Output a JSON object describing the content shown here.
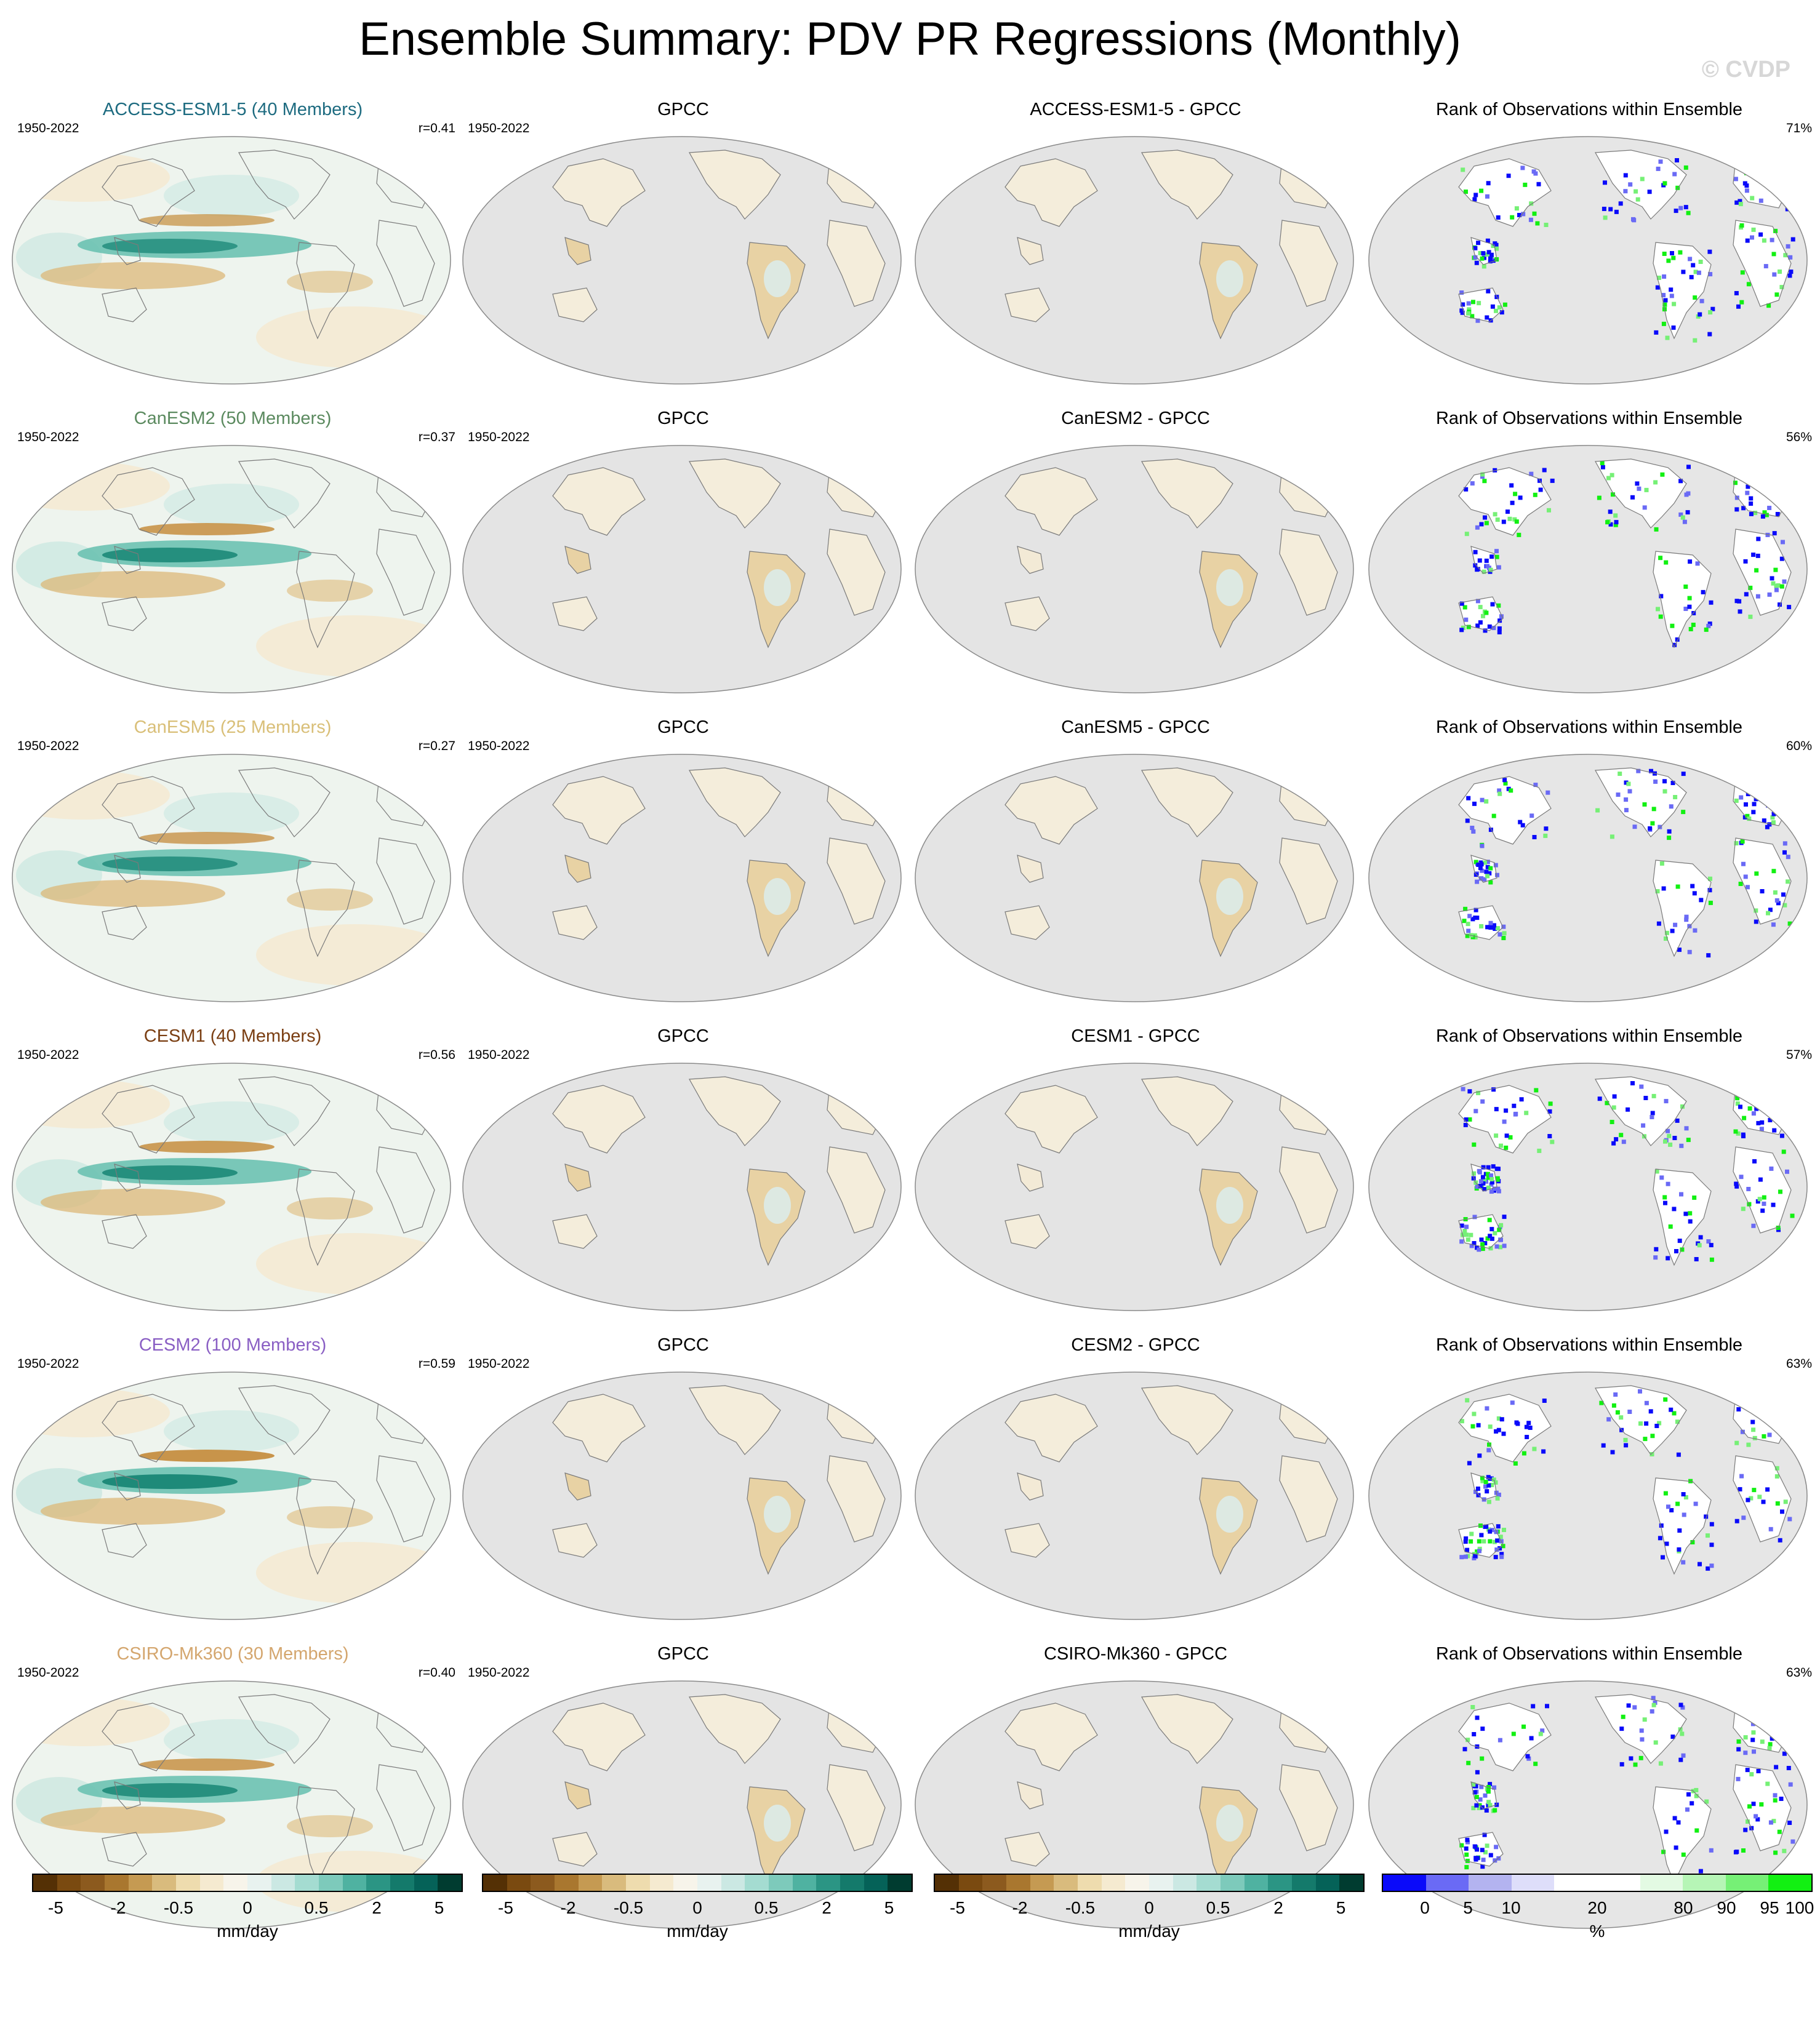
{
  "title": "Ensemble Summary: PDV PR Regressions (Monthly)",
  "watermark": "© CVDP",
  "rank_title": "Rank of Observations within Ensemble",
  "obs_title": "GPCC",
  "period": "1950-2022",
  "rows": [
    {
      "model": "ACCESS-ESM1-5 (40 Members)",
      "color": "#1d6b80",
      "r": "r=0.41",
      "diff": "ACCESS-ESM1-5 - GPCC",
      "rank_pct": "71%",
      "strength": 0.6
    },
    {
      "model": "CanESM2 (50 Members)",
      "color": "#5b8a5f",
      "r": "r=0.37",
      "diff": "CanESM2 - GPCC",
      "rank_pct": "56%",
      "strength": 0.85
    },
    {
      "model": "CanESM5 (25 Members)",
      "color": "#d9bf78",
      "r": "r=0.27",
      "diff": "CanESM5 - GPCC",
      "rank_pct": "60%",
      "strength": 0.7
    },
    {
      "model": "CESM1 (40 Members)",
      "color": "#7a3e12",
      "r": "r=0.56",
      "diff": "CESM1 - GPCC",
      "rank_pct": "57%",
      "strength": 0.85
    },
    {
      "model": "CESM2 (100 Members)",
      "color": "#8a5fc4",
      "r": "r=0.59",
      "diff": "CESM2 - GPCC",
      "rank_pct": "63%",
      "strength": 1.0
    },
    {
      "model": "CSIRO-Mk360 (30 Members)",
      "color": "#d4a66e",
      "r": "r=0.40",
      "diff": "CSIRO-Mk360 - GPCC",
      "rank_pct": "63%",
      "strength": 0.8
    }
  ],
  "colorbars": {
    "precip": {
      "units": "mm/day",
      "ticks": [
        "-5",
        "-2",
        "-0.5",
        "0",
        "0.5",
        "2",
        "5"
      ],
      "colors": [
        "#543005",
        "#7a4a10",
        "#8c5a1e",
        "#a9772f",
        "#c59a52",
        "#d9bb7d",
        "#eedcae",
        "#f5ead0",
        "#f7f4ea",
        "#e8f2ef",
        "#cbe8e3",
        "#a4dcd1",
        "#7dcabb",
        "#4fb2a1",
        "#2b9584",
        "#147a6b",
        "#056258",
        "#003c30"
      ]
    },
    "rank": {
      "units": "%",
      "ticks": [
        "0",
        "5",
        "10",
        "20",
        "80",
        "90",
        "95",
        "100"
      ],
      "colors": [
        "#0a0afa",
        "#6a6af5",
        "#b3b3f0",
        "#dedefa",
        "#ffffff",
        "#ffffff",
        "#e3fae3",
        "#b6f5b6",
        "#76f076",
        "#12f012"
      ]
    }
  }
}
